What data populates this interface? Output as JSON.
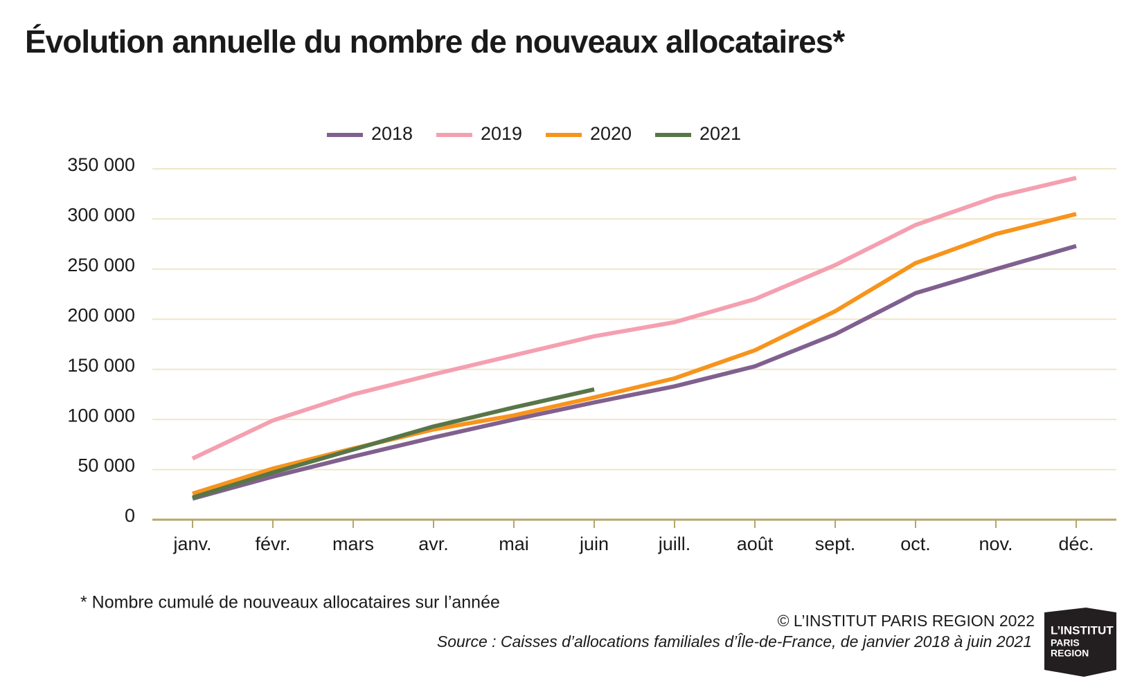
{
  "chart_data": {
    "type": "line",
    "title": "Évolution annuelle du nombre de nouveaux allocataires*",
    "categories": [
      "janv.",
      "févr.",
      "mars",
      "avr.",
      "mai",
      "juin",
      "juill.",
      "août",
      "sept.",
      "oct.",
      "nov.",
      "déc."
    ],
    "series": [
      {
        "name": "2018",
        "color": "#80608f",
        "values": [
          21000,
          43000,
          63000,
          82000,
          100000,
          117000,
          133000,
          153000,
          185000,
          226000,
          250000,
          273000
        ]
      },
      {
        "name": "2019",
        "color": "#f4a0b0",
        "values": [
          61000,
          99000,
          125000,
          145000,
          164000,
          183000,
          197000,
          220000,
          254000,
          294000,
          322000,
          341000
        ]
      },
      {
        "name": "2020",
        "color": "#f7941d",
        "values": [
          26000,
          51000,
          71000,
          90000,
          104000,
          122000,
          141000,
          169000,
          208000,
          256000,
          285000,
          305000
        ]
      },
      {
        "name": "2021",
        "color": "#587648",
        "values": [
          22000,
          47000,
          70000,
          93000,
          112000,
          130000,
          null,
          null,
          null,
          null,
          null,
          null
        ]
      }
    ],
    "ylim": [
      0,
      350000
    ],
    "yticks": [
      0,
      {
        "value": 50000,
        "label": "50 000"
      },
      {
        "value": 100000,
        "label": "100 000"
      },
      {
        "value": 150000,
        "label": "150 000"
      },
      {
        "value": 200000,
        "label": "200 000"
      },
      {
        "value": 250000,
        "label": "250 000"
      },
      {
        "value": 300000,
        "label": "300 000"
      },
      {
        "value": 350000,
        "label": "350 000"
      }
    ],
    "grid": true,
    "legend": "top",
    "footnote": "* Nombre cumulé de nouveaux allocataires sur l’année",
    "copyright": "© L’INSTITUT PARIS REGION 2022",
    "source": "Source : Caisses d’allocations familiales d’Île-de-France, de janvier 2018 à juin 2021",
    "logo": [
      "L’INSTITUT",
      "PARIS",
      "REGION"
    ]
  }
}
